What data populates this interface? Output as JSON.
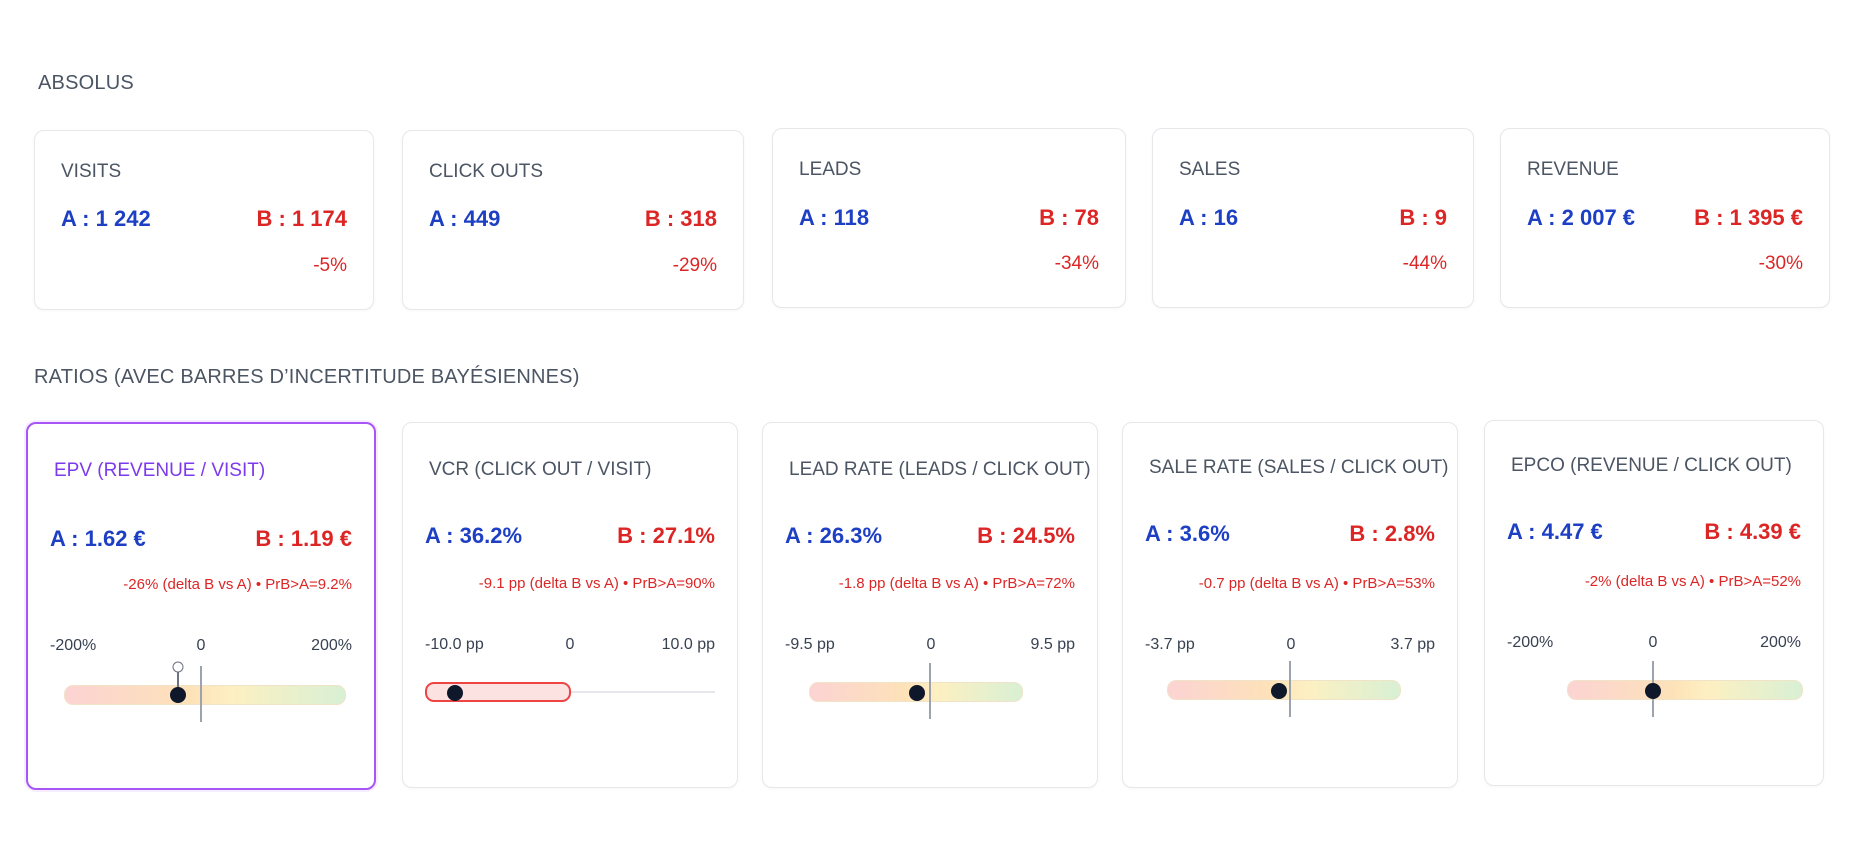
{
  "sections": {
    "absolute_title": "ABSOLUS",
    "ratios_title": "RATIOS (AVEC BARRES D’INCERTITUDE BAYÉSIENNES)"
  },
  "absolute_cards": [
    {
      "title": "VISITS",
      "a": "A : 1 242",
      "b": "B : 1 174",
      "delta": "-5%"
    },
    {
      "title": "CLICK OUTS",
      "a": "A : 449",
      "b": "B : 318",
      "delta": "-29%"
    },
    {
      "title": "LEADS",
      "a": "A : 118",
      "b": "B : 78",
      "delta": "-34%"
    },
    {
      "title": "SALES",
      "a": "A : 16",
      "b": "B : 9",
      "delta": "-44%"
    },
    {
      "title": "REVENUE",
      "a": "A : 2 007 €",
      "b": "B : 1 395 €",
      "delta": "-30%"
    }
  ],
  "ratio_cards": [
    {
      "title": "EPV (REVENUE / VISIT)",
      "a": "A : 1.62 €",
      "b": "B : 1.19 €",
      "delta": "-26% (delta B vs A) • PrB>A=9.2%",
      "scale_min": "-200%",
      "scale_mid": "0",
      "scale_max": "200%",
      "selected": true
    },
    {
      "title": "VCR (CLICK OUT / VISIT)",
      "a": "A : 36.2%",
      "b": "B : 27.1%",
      "delta": "-9.1 pp (delta B vs A) • PrB>A=90%",
      "scale_min": "-10.0 pp",
      "scale_mid": "0",
      "scale_max": "10.0 pp"
    },
    {
      "title": "LEAD RATE (LEADS / CLICK OUT)",
      "a": "A : 26.3%",
      "b": "B : 24.5%",
      "delta": "-1.8 pp (delta B vs A) • PrB>A=72%",
      "scale_min": "-9.5 pp",
      "scale_mid": "0",
      "scale_max": "9.5 pp"
    },
    {
      "title": "SALE RATE (SALES / CLICK OUT)",
      "a": "A : 3.6%",
      "b": "B : 2.8%",
      "delta": "-0.7 pp (delta B vs A) • PrB>A=53%",
      "scale_min": "-3.7 pp",
      "scale_mid": "0",
      "scale_max": "3.7 pp"
    },
    {
      "title": "EPCO (REVENUE / CLICK OUT)",
      "a": "A : 4.47 €",
      "b": "B : 4.39 €",
      "delta": "-2% (delta B vs A) • PrB>A=52%",
      "scale_min": "-200%",
      "scale_mid": "0",
      "scale_max": "200%"
    }
  ],
  "colors": {
    "a": "#1d3fc4",
    "b": "#dc2626",
    "selected_border": "#a855f7"
  }
}
